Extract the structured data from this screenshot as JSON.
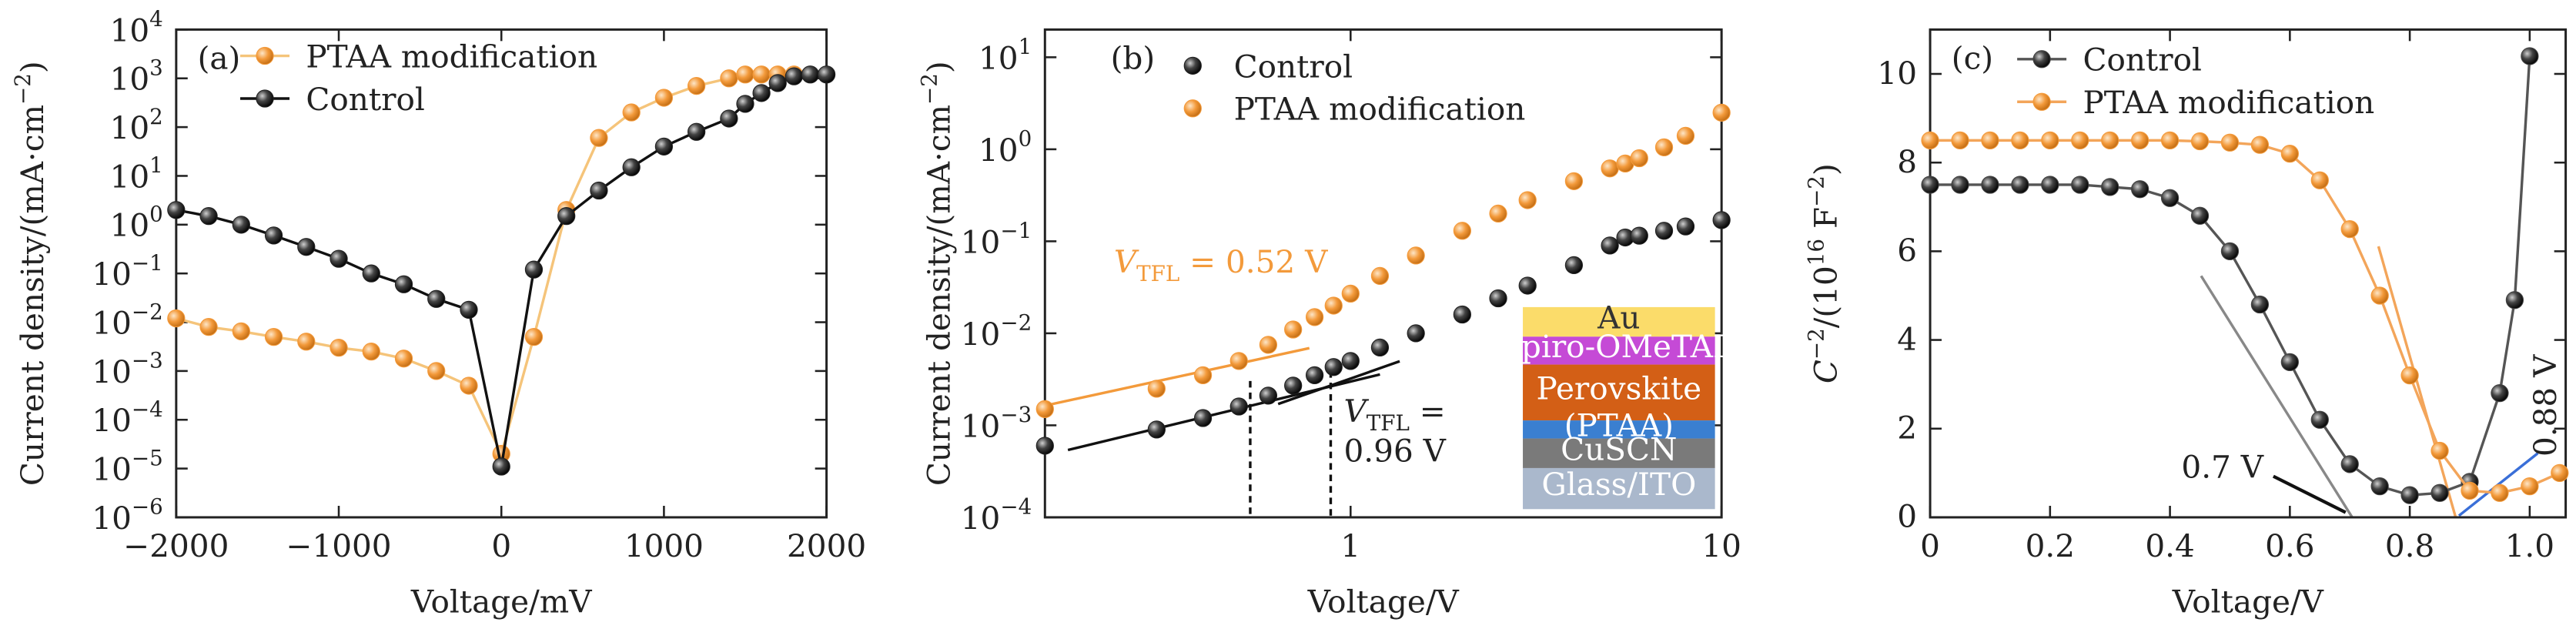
{
  "chart_data": [
    {
      "type": "line",
      "panel": "(a)",
      "xlabel": [
        {
          "t": "Voltage/mV"
        }
      ],
      "ylabel": [
        {
          "t": "Current density/(mA·cm"
        },
        {
          "t": "−2",
          "s": "sup"
        },
        {
          "t": ")"
        }
      ],
      "xlim": [
        -2000,
        2000
      ],
      "ylim": [
        1e-06,
        10000
      ],
      "yscale": "log",
      "xticks": [
        {
          "value": -2000,
          "label": "−2000"
        },
        {
          "value": -1000,
          "label": "−1000"
        },
        0,
        1000,
        2000
      ],
      "yticks": [
        {
          "value": 1e-06,
          "label": "10",
          "sup": "−6"
        },
        {
          "value": 1e-05,
          "label": "10",
          "sup": "−5"
        },
        {
          "value": 0.0001,
          "label": "10",
          "sup": "−4"
        },
        {
          "value": 0.001,
          "label": "10",
          "sup": "−3"
        },
        {
          "value": 0.01,
          "label": "10",
          "sup": "−2"
        },
        {
          "value": 0.1,
          "label": "10",
          "sup": "−1"
        },
        {
          "value": 1,
          "label": "10",
          "sup": "0"
        },
        {
          "value": 10,
          "label": "10",
          "sup": "1"
        },
        {
          "value": 100,
          "label": "10",
          "sup": "2"
        },
        {
          "value": 1000,
          "label": "10",
          "sup": "3"
        },
        {
          "value": 10000,
          "label": "10",
          "sup": "4"
        }
      ],
      "legend": "upper left",
      "series": [
        {
          "name": "PTAA modification",
          "color": "#f39a3b",
          "line_color": "#f5c47a",
          "x": [
            -2000,
            -1800,
            -1600,
            -1400,
            -1200,
            -1000,
            -800,
            -600,
            -400,
            -200,
            0,
            200,
            400,
            600,
            800,
            1000,
            1200,
            1400,
            1500,
            1600,
            1700,
            1800
          ],
          "values": [
            0.012,
            0.008,
            0.0065,
            0.005,
            0.004,
            0.003,
            0.0025,
            0.0018,
            0.001,
            0.0005,
            2e-05,
            0.005,
            2,
            60,
            200,
            400,
            700,
            1000,
            1200,
            1200,
            1200,
            1200
          ]
        },
        {
          "name": "Control",
          "color": "#222222",
          "line_color": "#111111",
          "x": [
            -2000,
            -1800,
            -1600,
            -1400,
            -1200,
            -1000,
            -800,
            -600,
            -400,
            -200,
            0,
            200,
            400,
            600,
            800,
            1000,
            1200,
            1400,
            1500,
            1600,
            1700,
            1800,
            1900,
            2000
          ],
          "values": [
            2,
            1.5,
            1.0,
            0.6,
            0.35,
            0.2,
            0.1,
            0.06,
            0.03,
            0.018,
            1.1e-05,
            0.12,
            1.5,
            5,
            15,
            40,
            80,
            150,
            300,
            500,
            800,
            1100,
            1200,
            1200
          ]
        }
      ]
    },
    {
      "type": "scatter",
      "panel": "(b)",
      "xlabel": [
        {
          "t": "Voltage/V"
        }
      ],
      "ylabel": [
        {
          "t": "Current density/(mA·cm"
        },
        {
          "t": "−2",
          "s": "sup"
        },
        {
          "t": ")"
        }
      ],
      "xlim": [
        0.15,
        10
      ],
      "ylim": [
        0.0001,
        20
      ],
      "xscale": "log",
      "yscale": "log",
      "xticks": [
        1,
        10
      ],
      "yticks": [
        {
          "value": 0.0001,
          "label": "10",
          "sup": "−4"
        },
        {
          "value": 0.001,
          "label": "10",
          "sup": "−3"
        },
        {
          "value": 0.01,
          "label": "10",
          "sup": "−2"
        },
        {
          "value": 0.1,
          "label": "10",
          "sup": "−1"
        },
        {
          "value": 1,
          "label": "10",
          "sup": "0"
        },
        {
          "value": 10,
          "label": "10",
          "sup": "1"
        }
      ],
      "legend": "upper left",
      "series": [
        {
          "name": "Control",
          "color": "#222222",
          "x": [
            0.15,
            0.3,
            0.4,
            0.5,
            0.6,
            0.7,
            0.8,
            0.9,
            1,
            1.2,
            1.5,
            2,
            2.5,
            3,
            4,
            5,
            5.5,
            6,
            7,
            8,
            10
          ],
          "values": [
            0.0006,
            0.0009,
            0.0012,
            0.0016,
            0.0021,
            0.0027,
            0.0035,
            0.0043,
            0.005,
            0.007,
            0.01,
            0.016,
            0.024,
            0.033,
            0.055,
            0.09,
            0.11,
            0.115,
            0.13,
            0.145,
            0.17
          ]
        },
        {
          "name": "PTAA modification",
          "color": "#f39a3b",
          "x": [
            0.15,
            0.3,
            0.4,
            0.5,
            0.6,
            0.7,
            0.8,
            0.9,
            1,
            1.2,
            1.5,
            2,
            2.5,
            3,
            4,
            5,
            5.5,
            6,
            7,
            8,
            10
          ],
          "values": [
            0.0015,
            0.0025,
            0.0035,
            0.005,
            0.0075,
            0.011,
            0.015,
            0.02,
            0.027,
            0.042,
            0.07,
            0.13,
            0.2,
            0.28,
            0.45,
            0.62,
            0.7,
            0.8,
            1.05,
            1.4,
            2.5
          ]
        }
      ],
      "annotations": [
        [
          {
            "t": "V",
            "s": "i"
          },
          {
            "t": "TFL",
            "s": "sub"
          },
          {
            "t": " = 0.52 V"
          }
        ],
        [
          {
            "t": "V",
            "s": "i"
          },
          {
            "t": "TFL",
            "s": "sub"
          },
          {
            "t": " ="
          }
        ],
        [
          {
            "t": "0.96 V"
          }
        ]
      ],
      "inset": [
        "Au",
        "Spiro-OMeTAD",
        "Perovskite",
        "(PTAA)",
        "CuSCN",
        "Glass/ITO"
      ]
    },
    {
      "type": "line",
      "panel": "(c)",
      "xlabel": [
        {
          "t": "Voltage/V"
        }
      ],
      "ylabel": [
        {
          "t": "C",
          "s": "i"
        },
        {
          "t": "−2",
          "s": "sup"
        },
        {
          "t": "/(10"
        },
        {
          "t": "16",
          "s": "sup"
        },
        {
          "t": " F"
        },
        {
          "t": "−2",
          "s": "sup"
        },
        {
          "t": ")"
        }
      ],
      "xlim": [
        0,
        1.06
      ],
      "ylim": [
        0,
        11
      ],
      "xticks": [
        0,
        0.2,
        0.4,
        0.6,
        0.8,
        {
          "value": 1,
          "label": "1.0"
        }
      ],
      "yticks": [
        0,
        2,
        4,
        6,
        8,
        10
      ],
      "legend": "upper left",
      "series": [
        {
          "name": "Control",
          "color": "#444444",
          "line_color": "#555555",
          "x": [
            0,
            0.05,
            0.1,
            0.15,
            0.2,
            0.25,
            0.3,
            0.35,
            0.4,
            0.45,
            0.5,
            0.55,
            0.6,
            0.65,
            0.7,
            0.75,
            0.8,
            0.85,
            0.9,
            0.95,
            0.975,
            1.0
          ],
          "values": [
            7.5,
            7.5,
            7.5,
            7.5,
            7.5,
            7.5,
            7.45,
            7.4,
            7.2,
            6.8,
            6.0,
            4.8,
            3.5,
            2.2,
            1.2,
            0.7,
            0.5,
            0.55,
            0.8,
            2.8,
            4.9,
            10.4
          ]
        },
        {
          "name": "PTAA modification",
          "color": "#f39a3b",
          "line_color": "#f3a55a",
          "x": [
            0,
            0.05,
            0.1,
            0.15,
            0.2,
            0.25,
            0.3,
            0.35,
            0.4,
            0.45,
            0.5,
            0.55,
            0.6,
            0.65,
            0.7,
            0.75,
            0.8,
            0.85,
            0.9,
            0.95,
            1.0,
            1.05
          ],
          "values": [
            8.5,
            8.5,
            8.5,
            8.5,
            8.5,
            8.5,
            8.5,
            8.5,
            8.5,
            8.48,
            8.45,
            8.4,
            8.2,
            7.6,
            6.5,
            5.0,
            3.2,
            1.5,
            0.6,
            0.55,
            0.7,
            1.0
          ]
        }
      ],
      "annotations": [
        [
          {
            "t": "0.7 V"
          }
        ],
        [
          {
            "t": "0.88 V"
          }
        ]
      ]
    }
  ]
}
